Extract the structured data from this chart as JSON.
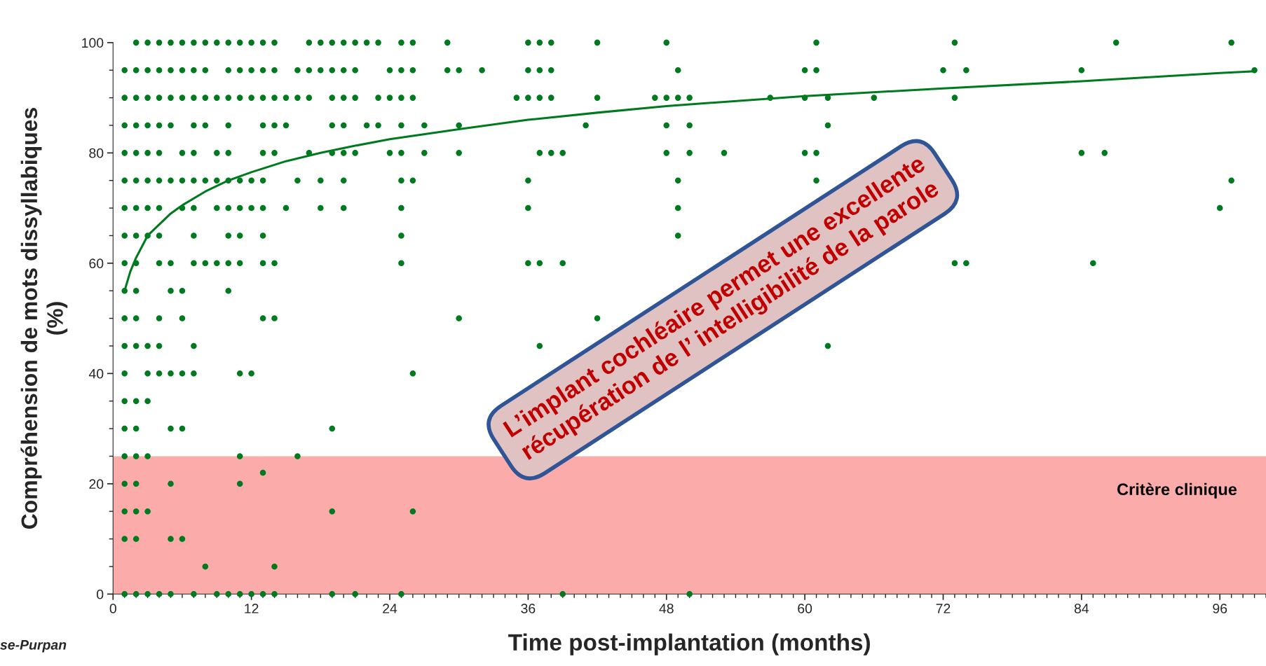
{
  "chart_data": {
    "type": "scatter",
    "xlabel": "Time post-implantation (months)",
    "ylabel": "Compréhension de mots dissyllabiques\n(%)",
    "xlim": [
      0,
      100
    ],
    "xticks": [
      0,
      12,
      24,
      36,
      48,
      60,
      72,
      84,
      96
    ],
    "ylim": [
      0,
      100
    ],
    "yticks": [
      0,
      20,
      40,
      60,
      80,
      100
    ],
    "grid": false,
    "legend": false,
    "marker": "circle",
    "bands": [
      {
        "axis": "y",
        "from": 0,
        "to": 25,
        "label": "Critère clinique",
        "color": "#fcabab"
      }
    ],
    "annotations": [
      "L’implant cochléaire permet une excellente\nrécupération de l’ intelligibilité de la parole",
      "se-Purpan"
    ],
    "series": [
      {
        "color": "#007a1e",
        "x": [
          2,
          3,
          4,
          5,
          6,
          7,
          8,
          9,
          10,
          11,
          12,
          13,
          14,
          17,
          18,
          19,
          20,
          21,
          22,
          23,
          25,
          26,
          29,
          36,
          37,
          38,
          42,
          48,
          61,
          73,
          87,
          97,
          1,
          2,
          3,
          4,
          5,
          6,
          7,
          8,
          10,
          11,
          12,
          13,
          14,
          16,
          17,
          18,
          19,
          20,
          21,
          24,
          25,
          26,
          29,
          30,
          32,
          36,
          37,
          38,
          49,
          60,
          61,
          72,
          74,
          84,
          99,
          1,
          2,
          3,
          4,
          5,
          6,
          7,
          8,
          9,
          10,
          11,
          12,
          13,
          14,
          15,
          16,
          17,
          19,
          20,
          21,
          23,
          24,
          25,
          26,
          35,
          36,
          37,
          38,
          42,
          47,
          48,
          49,
          50,
          57,
          60,
          62,
          66,
          73,
          1,
          2,
          3,
          4,
          5,
          7,
          8,
          10,
          13,
          14,
          15,
          19,
          20,
          22,
          23,
          25,
          27,
          30,
          41,
          48,
          50,
          62,
          1,
          2,
          3,
          4,
          6,
          7,
          9,
          10,
          13,
          14,
          17,
          19,
          20,
          21,
          24,
          25,
          27,
          30,
          37,
          38,
          39,
          48,
          50,
          53,
          60,
          61,
          84,
          86,
          1,
          2,
          3,
          4,
          5,
          6,
          7,
          8,
          9,
          10,
          11,
          12,
          13,
          16,
          18,
          20,
          25,
          26,
          36,
          49,
          61,
          97,
          1,
          2,
          3,
          4,
          6,
          7,
          9,
          10,
          11,
          12,
          13,
          15,
          18,
          20,
          25,
          36,
          49,
          96,
          1,
          2,
          3,
          4,
          7,
          10,
          11,
          13,
          25,
          49,
          1,
          2,
          4,
          5,
          7,
          8,
          9,
          10,
          11,
          13,
          14,
          25,
          36,
          37,
          39,
          73,
          74,
          85,
          1,
          2,
          5,
          6,
          10,
          1,
          2,
          4,
          6,
          13,
          14,
          30,
          42,
          1,
          2,
          3,
          4,
          7,
          37,
          62,
          1,
          3,
          4,
          5,
          6,
          7,
          11,
          12,
          26,
          1,
          2,
          3,
          1,
          2,
          5,
          6,
          19,
          1,
          2,
          3,
          11,
          16,
          13,
          1,
          2,
          5,
          11,
          1,
          2,
          3,
          19,
          26,
          1,
          2,
          5,
          6,
          8,
          14,
          1,
          2,
          3,
          4,
          5,
          7,
          9,
          10,
          11,
          12,
          13,
          14,
          19,
          21,
          25,
          39,
          50
        ],
        "values": [
          100,
          100,
          100,
          100,
          100,
          100,
          100,
          100,
          100,
          100,
          100,
          100,
          100,
          100,
          100,
          100,
          100,
          100,
          100,
          100,
          100,
          100,
          100,
          100,
          100,
          100,
          100,
          100,
          100,
          100,
          100,
          100,
          95,
          95,
          95,
          95,
          95,
          95,
          95,
          95,
          95,
          95,
          95,
          95,
          95,
          95,
          95,
          95,
          95,
          95,
          95,
          95,
          95,
          95,
          95,
          95,
          95,
          95,
          95,
          95,
          95,
          95,
          95,
          95,
          95,
          95,
          95,
          90,
          90,
          90,
          90,
          90,
          90,
          90,
          90,
          90,
          90,
          90,
          90,
          90,
          90,
          90,
          90,
          90,
          90,
          90,
          90,
          90,
          90,
          90,
          90,
          90,
          90,
          90,
          90,
          90,
          90,
          90,
          90,
          90,
          90,
          90,
          90,
          90,
          90,
          85,
          85,
          85,
          85,
          85,
          85,
          85,
          85,
          85,
          85,
          85,
          85,
          85,
          85,
          85,
          85,
          85,
          85,
          85,
          85,
          85,
          85,
          80,
          80,
          80,
          80,
          80,
          80,
          80,
          80,
          80,
          80,
          80,
          80,
          80,
          80,
          80,
          80,
          80,
          80,
          80,
          80,
          80,
          80,
          80,
          80,
          80,
          80,
          80,
          80,
          75,
          75,
          75,
          75,
          75,
          75,
          75,
          75,
          75,
          75,
          75,
          75,
          75,
          75,
          75,
          75,
          75,
          75,
          75,
          75,
          75,
          75,
          70,
          70,
          70,
          70,
          70,
          70,
          70,
          70,
          70,
          70,
          70,
          70,
          70,
          70,
          70,
          70,
          70,
          70,
          65,
          65,
          65,
          65,
          65,
          65,
          65,
          65,
          65,
          65,
          60,
          60,
          60,
          60,
          60,
          60,
          60,
          60,
          60,
          60,
          60,
          60,
          60,
          60,
          60,
          60,
          60,
          60,
          55,
          55,
          55,
          55,
          55,
          50,
          50,
          50,
          50,
          50,
          50,
          50,
          50,
          45,
          45,
          45,
          45,
          45,
          45,
          45,
          40,
          40,
          40,
          40,
          40,
          40,
          40,
          40,
          40,
          35,
          35,
          35,
          30,
          30,
          30,
          30,
          30,
          25,
          25,
          25,
          25,
          25,
          22,
          20,
          20,
          20,
          20,
          15,
          15,
          15,
          15,
          15,
          10,
          10,
          10,
          10,
          5,
          5,
          0,
          0,
          0,
          0,
          0,
          0,
          0,
          0,
          0,
          0,
          0,
          0,
          0,
          0,
          0,
          0,
          0
        ]
      },
      {
        "type": "line",
        "color": "#007a1e",
        "marker": "none",
        "line_style": "solid",
        "x": [
          1,
          1.5,
          2,
          3,
          4,
          5,
          6,
          8,
          10,
          12,
          15,
          18,
          21,
          24,
          30,
          36,
          42,
          48,
          60,
          72,
          84,
          96,
          99
        ],
        "values": [
          55,
          58.5,
          61,
          65,
          67,
          69,
          70.5,
          73,
          75,
          76.5,
          78.5,
          80,
          81.3,
          82.5,
          84.3,
          86,
          87.3,
          88.5,
          90.3,
          91.7,
          93,
          94.5,
          94.8
        ]
      }
    ]
  }
}
